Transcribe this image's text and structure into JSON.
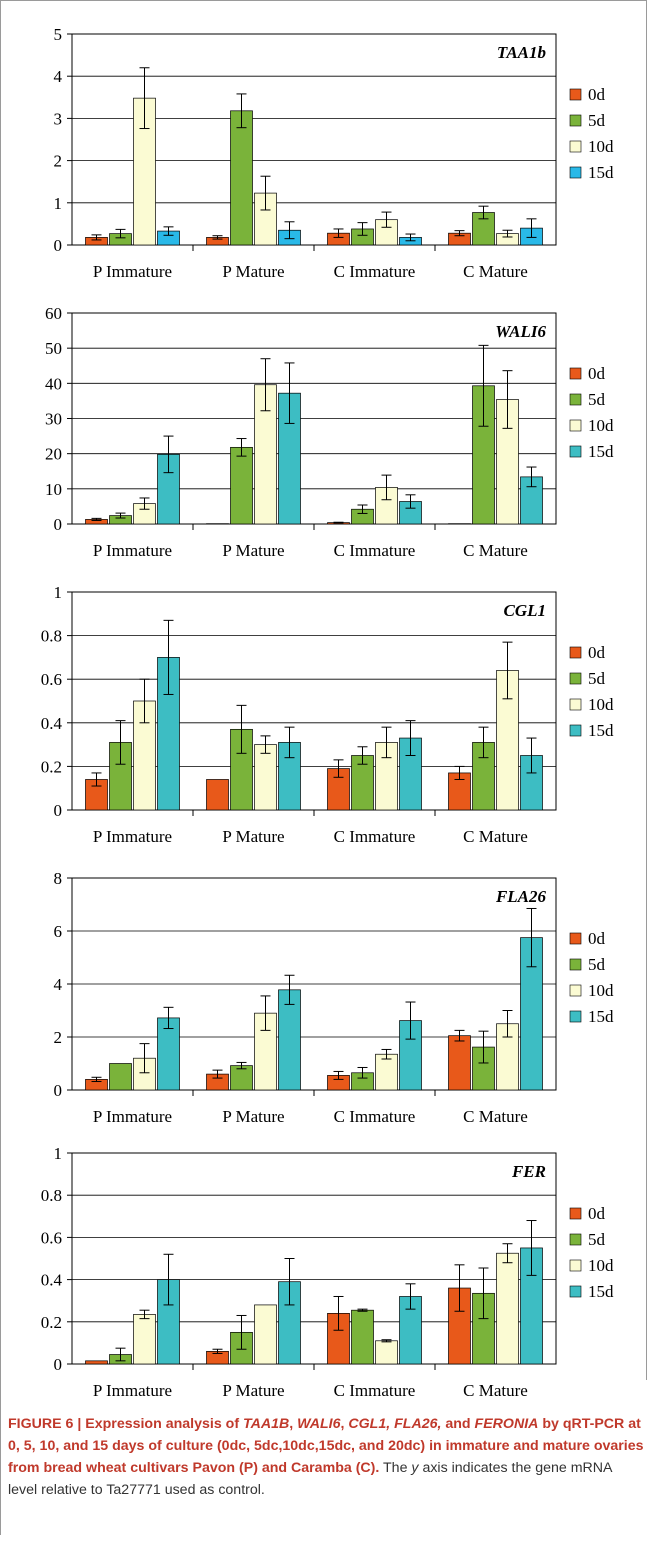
{
  "colors": {
    "d0": "#e8591a",
    "d5": "#7ab33a",
    "d10": "#fbfbd3",
    "d15_panel1": "#29b9e8",
    "d15": "#3dbdc3",
    "caption_heading": "#c0392b",
    "caption_text": "#333333"
  },
  "chart_data": [
    {
      "type": "bar",
      "title": "TAA1b",
      "categories": [
        "P Immature",
        "P Mature",
        "C Immature",
        "C Mature"
      ],
      "ylim": [
        0,
        5
      ],
      "yticks": [
        "0",
        "1",
        "2",
        "3",
        "4",
        "5"
      ],
      "grid": true,
      "legend_position": "right",
      "series": [
        {
          "name": "0d",
          "values": [
            0.18,
            0.18,
            0.28,
            0.28
          ],
          "errors": [
            0.06,
            0.04,
            0.1,
            0.06
          ]
        },
        {
          "name": "5d",
          "values": [
            0.27,
            3.18,
            0.38,
            0.77
          ],
          "errors": [
            0.1,
            0.4,
            0.15,
            0.15
          ]
        },
        {
          "name": "10d",
          "values": [
            3.48,
            1.23,
            0.6,
            0.27
          ],
          "errors": [
            0.72,
            0.4,
            0.18,
            0.08
          ]
        },
        {
          "name": "15d",
          "values": [
            0.33,
            0.35,
            0.18,
            0.4
          ],
          "errors": [
            0.1,
            0.2,
            0.08,
            0.22
          ]
        }
      ]
    },
    {
      "type": "bar",
      "title": "WALI6",
      "categories": [
        "P Immature",
        "P Mature",
        "C Immature",
        "C Mature"
      ],
      "ylim": [
        0,
        60
      ],
      "yticks": [
        "0",
        "10",
        "20",
        "30",
        "40",
        "50",
        "60"
      ],
      "grid": true,
      "legend_position": "right",
      "series": [
        {
          "name": "0d",
          "values": [
            1.3,
            0.1,
            0.4,
            0.1
          ],
          "errors": [
            0.3,
            0.0,
            0.1,
            0.0
          ]
        },
        {
          "name": "5d",
          "values": [
            2.4,
            21.8,
            4.2,
            39.3
          ],
          "errors": [
            0.7,
            2.5,
            1.2,
            11.5
          ]
        },
        {
          "name": "10d",
          "values": [
            5.8,
            39.6,
            10.4,
            35.4
          ],
          "errors": [
            1.6,
            7.4,
            3.5,
            8.2
          ]
        },
        {
          "name": "15d",
          "values": [
            19.8,
            37.2,
            6.4,
            13.4
          ],
          "errors": [
            5.2,
            8.6,
            1.9,
            2.8
          ]
        }
      ]
    },
    {
      "type": "bar",
      "title": "CGL1",
      "categories": [
        "P Immature",
        "P Mature",
        "C Immature",
        "C Mature"
      ],
      "ylim": [
        0,
        1
      ],
      "yticks": [
        "0",
        "0.2",
        "0.4",
        "0.6",
        "0.8",
        "1"
      ],
      "grid": true,
      "legend_position": "right",
      "series": [
        {
          "name": "0d",
          "values": [
            0.14,
            0.14,
            0.19,
            0.17
          ],
          "errors": [
            0.03,
            0.0,
            0.04,
            0.03
          ]
        },
        {
          "name": "5d",
          "values": [
            0.31,
            0.37,
            0.25,
            0.31
          ],
          "errors": [
            0.1,
            0.11,
            0.04,
            0.07
          ]
        },
        {
          "name": "10d",
          "values": [
            0.5,
            0.3,
            0.31,
            0.64
          ],
          "errors": [
            0.1,
            0.04,
            0.07,
            0.13
          ]
        },
        {
          "name": "15d",
          "values": [
            0.7,
            0.31,
            0.33,
            0.25
          ],
          "errors": [
            0.17,
            0.07,
            0.08,
            0.08
          ]
        }
      ]
    },
    {
      "type": "bar",
      "title": "FLA26",
      "categories": [
        "P Immature",
        "P Mature",
        "C Immature",
        "C Mature"
      ],
      "ylim": [
        0,
        8
      ],
      "yticks": [
        "0",
        "2",
        "4",
        "6",
        "8"
      ],
      "grid": true,
      "legend_position": "right",
      "series": [
        {
          "name": "0d",
          "values": [
            0.4,
            0.6,
            0.55,
            2.05
          ],
          "errors": [
            0.08,
            0.15,
            0.15,
            0.2
          ]
        },
        {
          "name": "5d",
          "values": [
            1.0,
            0.92,
            0.65,
            1.62
          ],
          "errors": [
            0.0,
            0.12,
            0.2,
            0.6
          ]
        },
        {
          "name": "10d",
          "values": [
            1.2,
            2.9,
            1.35,
            2.5
          ],
          "errors": [
            0.55,
            0.65,
            0.18,
            0.5
          ]
        },
        {
          "name": "15d",
          "values": [
            2.72,
            3.78,
            2.62,
            5.75
          ],
          "errors": [
            0.4,
            0.55,
            0.7,
            1.1
          ]
        }
      ]
    },
    {
      "type": "bar",
      "title": "FER",
      "categories": [
        "P Immature",
        "P Mature",
        "C Immature",
        "C Mature"
      ],
      "ylim": [
        0,
        1
      ],
      "yticks": [
        "0",
        "0.2",
        "0.4",
        "0.6",
        "0.8",
        "1"
      ],
      "grid": true,
      "legend_position": "right",
      "series": [
        {
          "name": "0d",
          "values": [
            0.015,
            0.06,
            0.24,
            0.36
          ],
          "errors": [
            0.0,
            0.01,
            0.08,
            0.11
          ]
        },
        {
          "name": "5d",
          "values": [
            0.045,
            0.15,
            0.255,
            0.335
          ],
          "errors": [
            0.03,
            0.08,
            0.005,
            0.12
          ]
        },
        {
          "name": "10d",
          "values": [
            0.235,
            0.28,
            0.11,
            0.525
          ],
          "errors": [
            0.02,
            0.0,
            0.005,
            0.045
          ]
        },
        {
          "name": "15d",
          "values": [
            0.4,
            0.39,
            0.32,
            0.55
          ],
          "errors": [
            0.12,
            0.11,
            0.06,
            0.13
          ]
        }
      ]
    }
  ],
  "caption": {
    "figure_label": "FIGURE 6 | Expression analysis of ",
    "gene1": "TAA1B",
    "sep1": ", ",
    "gene2": "WALI6",
    "sep2": ", ",
    "gene3": "CGL1, FLA26,",
    "sep3": " and ",
    "gene4": "FERONIA",
    "heading_rest": " by qRT-PCR at 0, 5, 10, and 15 days of culture (0dc, 5dc,10dc,15dc, and 20dc) in immature and mature ovaries from bread wheat cultivars Pavon (P) and Caramba (C).",
    "text_pre": " The ",
    "text_y": "y",
    "text_post": " axis indicates the gene mRNA level relative to Ta27771 used as control."
  }
}
